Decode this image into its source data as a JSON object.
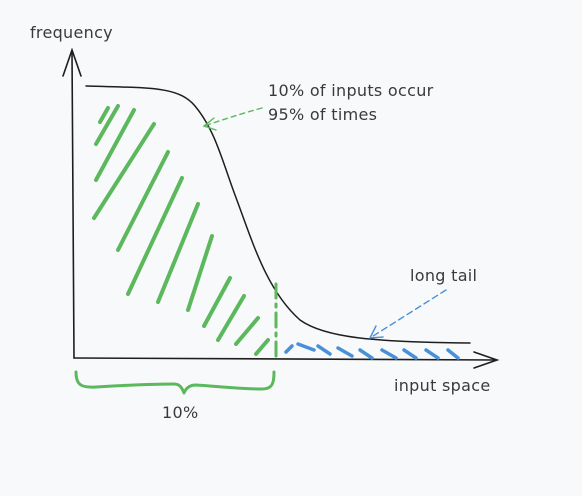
{
  "diagram": {
    "y_axis_label": "frequency",
    "x_axis_label": "input space",
    "head_annotation": {
      "line1": "10% of inputs occur",
      "line2": "95% of times"
    },
    "tail_annotation": "long tail",
    "brace_label": "10%",
    "colors": {
      "background": "#f8f9fb",
      "ink": "#1e1e1e",
      "head_fill": "#5cb85c",
      "tail_fill": "#4a90d9",
      "text": "#3a3a3a"
    }
  }
}
